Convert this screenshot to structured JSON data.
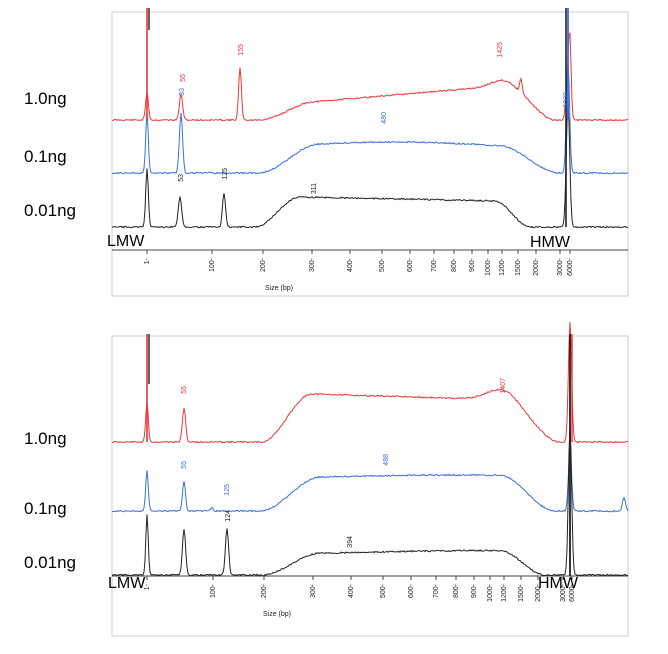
{
  "colors": {
    "red": "#e8383d",
    "blue": "#3b6fe0",
    "black": "#222222"
  },
  "chart_data": [
    {
      "type": "line",
      "panel": "top",
      "xlabel": "Size (bp)",
      "x_scale": "log",
      "x_ticks": [
        "1",
        "100",
        "200",
        "300",
        "400",
        "500",
        "600",
        "700",
        "800",
        "900",
        "1000",
        "1200",
        "1500",
        "2000",
        "3000",
        "6000"
      ],
      "markers": {
        "lmw": "LMW",
        "hmw": "HMW"
      },
      "series": [
        {
          "name": "1.0ng",
          "color": "#e8383d",
          "peak_labels": [
            "55",
            "155",
            "1425"
          ]
        },
        {
          "name": "0.1ng",
          "color": "#3b6fe0",
          "peak_labels": [
            "53",
            "480"
          ]
        },
        {
          "name": "0.01ng",
          "color": "#222222",
          "peak_labels": [
            "53",
            "125",
            "311"
          ]
        }
      ],
      "occluded_label": "6000"
    },
    {
      "type": "line",
      "panel": "bottom",
      "xlabel": "Size (bp)",
      "x_scale": "log",
      "x_ticks": [
        "1",
        "100",
        "200",
        "300",
        "400",
        "500",
        "600",
        "700",
        "800",
        "900",
        "1000",
        "1200",
        "1500",
        "2000",
        "3000",
        "6000"
      ],
      "markers": {
        "lmw": "LMW",
        "hmw": "HMW"
      },
      "series": [
        {
          "name": "1.0ng",
          "color": "#e8383d",
          "peak_labels": [
            "55",
            "1407"
          ]
        },
        {
          "name": "0.1ng",
          "color": "#3b6fe0",
          "peak_labels": [
            "55",
            "125",
            "488"
          ]
        },
        {
          "name": "0.01ng",
          "color": "#222222",
          "peak_labels": [
            "124",
            "394"
          ]
        }
      ]
    }
  ]
}
